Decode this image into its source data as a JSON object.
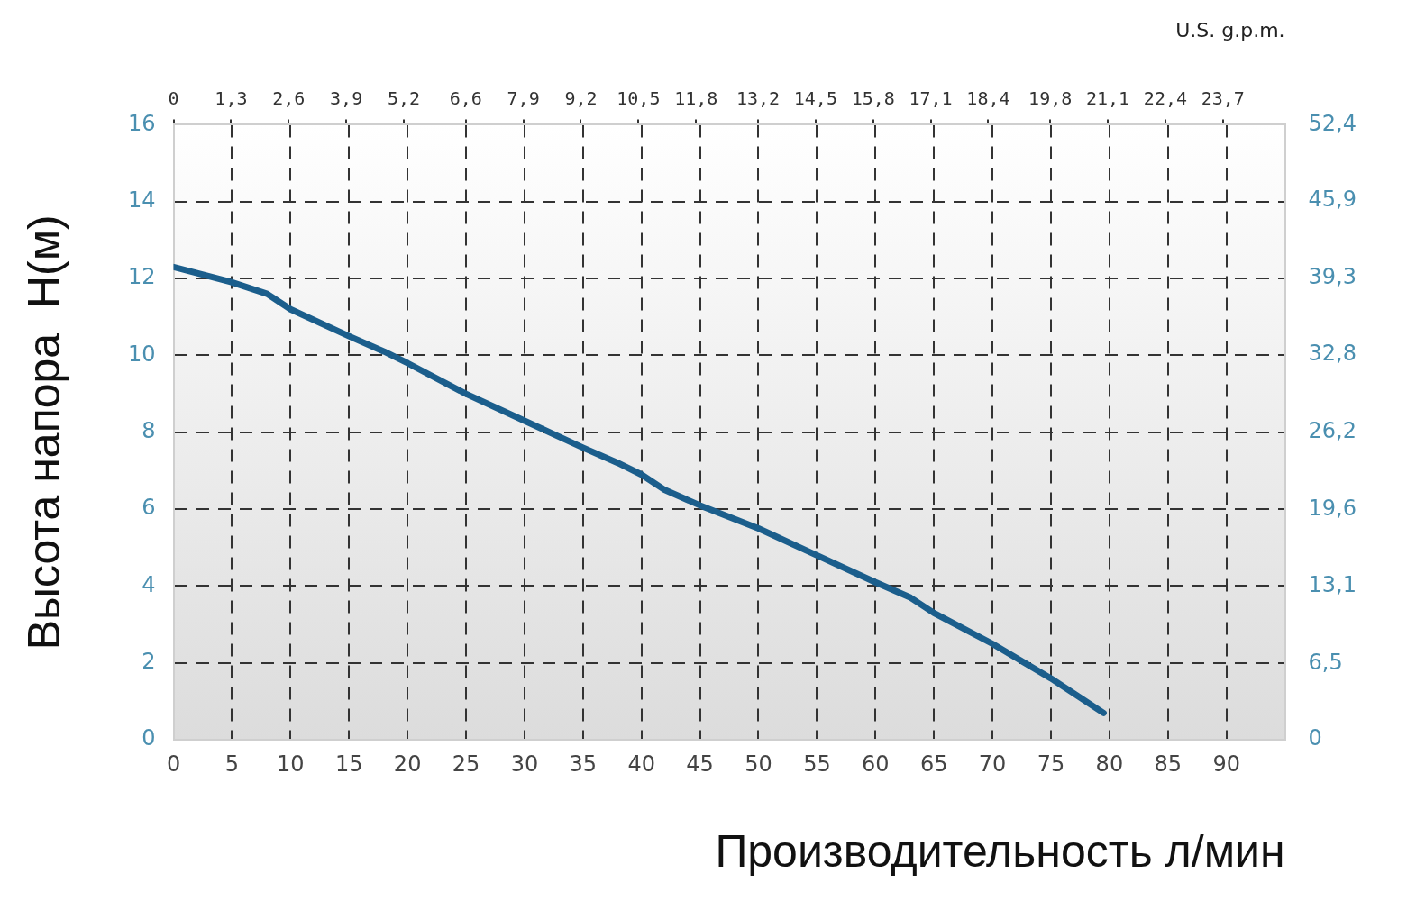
{
  "chart_data": {
    "type": "line",
    "xlabel": "Производительность л/мин",
    "ylabel": "Высота напора  H(м)",
    "x2label": "U.S. g.p.m.",
    "x": [
      0,
      5,
      8,
      10,
      15,
      18,
      20,
      25,
      30,
      35,
      38,
      40,
      42,
      45,
      50,
      55,
      60,
      63,
      65,
      70,
      75,
      79.5
    ],
    "series": [
      {
        "color": "#1b5e8c",
        "values": [
          12.3,
          11.9,
          11.6,
          11.2,
          10.5,
          10.1,
          9.8,
          9.0,
          8.3,
          7.6,
          7.2,
          6.9,
          6.5,
          6.1,
          5.5,
          4.8,
          4.1,
          3.7,
          3.3,
          2.5,
          1.6,
          0.7
        ]
      }
    ],
    "xlim": [
      0,
      95
    ],
    "xticks": [
      0,
      5,
      10,
      15,
      20,
      25,
      30,
      35,
      40,
      45,
      50,
      55,
      60,
      65,
      70,
      75,
      80,
      85,
      90
    ],
    "x2lim": [
      0,
      25.1
    ],
    "x2ticks": [
      0,
      {
        "value": 1.3,
        "label": "1,3"
      },
      {
        "value": 2.6,
        "label": "2,6"
      },
      {
        "value": 3.9,
        "label": "3,9"
      },
      {
        "value": 5.2,
        "label": "5,2"
      },
      {
        "value": 6.6,
        "label": "6,6"
      },
      {
        "value": 7.9,
        "label": "7,9"
      },
      {
        "value": 9.2,
        "label": "9,2"
      },
      {
        "value": 10.5,
        "label": "10,5"
      },
      {
        "value": 11.8,
        "label": "11,8"
      },
      {
        "value": 13.2,
        "label": "13,2"
      },
      {
        "value": 14.5,
        "label": "14,5"
      },
      {
        "value": 15.8,
        "label": "15,8"
      },
      {
        "value": 17.1,
        "label": "17,1"
      },
      {
        "value": 18.4,
        "label": "18,4"
      },
      {
        "value": 19.8,
        "label": "19,8"
      },
      {
        "value": 21.1,
        "label": "21,1"
      },
      {
        "value": 22.4,
        "label": "22,4"
      },
      {
        "value": 23.7,
        "label": "23,7"
      }
    ],
    "ylim": [
      0,
      16
    ],
    "yticks": [
      0,
      2,
      4,
      6,
      8,
      10,
      12,
      14,
      16
    ],
    "y2lim": [
      0,
      52.4
    ],
    "y2ticks": [
      0,
      {
        "value": 6.5,
        "label": "6,5"
      },
      {
        "value": 13.1,
        "label": "13,1"
      },
      {
        "value": 19.6,
        "label": "19,6"
      },
      {
        "value": 26.2,
        "label": "26,2"
      },
      {
        "value": 32.8,
        "label": "32,8"
      },
      {
        "value": 39.3,
        "label": "39,3"
      },
      {
        "value": 45.9,
        "label": "45,9"
      },
      {
        "value": 52.4,
        "label": "52,4"
      }
    ],
    "grid": true,
    "legend": false,
    "marker": "none",
    "line_style": "solid"
  }
}
